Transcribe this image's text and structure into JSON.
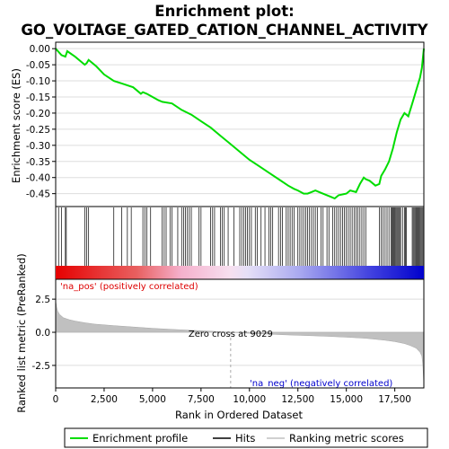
{
  "chart_data": [
    {
      "type": "line",
      "title": "Enrichment plot:",
      "subtitle": "GO_VOLTAGE_GATED_CATION_CHANNEL_ACTIVITY",
      "ylabel": "Enrichment score (ES)",
      "xlim": [
        0,
        19000
      ],
      "ylim": [
        -0.49,
        0.02
      ],
      "yticks": [
        0.0,
        -0.05,
        -0.1,
        -0.15,
        -0.2,
        -0.25,
        -0.3,
        -0.35,
        -0.4,
        -0.45
      ],
      "ytick_labels": [
        "0.00",
        "-0.05",
        "-0.10",
        "-0.15",
        "-0.20",
        "-0.25",
        "-0.30",
        "-0.35",
        "-0.40",
        "-0.45"
      ],
      "grid": true,
      "line_color": "#00dd00",
      "series": [
        {
          "name": "Enrichment profile",
          "x": [
            0,
            300,
            500,
            600,
            1000,
            1500,
            1600,
            1700,
            2100,
            2500,
            3000,
            3500,
            4000,
            4400,
            4500,
            4700,
            5000,
            5300,
            5500,
            6000,
            6500,
            7000,
            7500,
            8000,
            8500,
            9000,
            9500,
            10000,
            10500,
            11000,
            11500,
            12000,
            12300,
            12500,
            12800,
            13000,
            13200,
            13400,
            13600,
            14000,
            14200,
            14400,
            14600,
            15000,
            15200,
            15500,
            15700,
            15900,
            16000,
            16200,
            16500,
            16700,
            16800,
            17000,
            17200,
            17400,
            17600,
            17800,
            18000,
            18200,
            18400,
            18600,
            18800,
            18900,
            18950,
            19000
          ],
          "y": [
            0.0,
            -0.02,
            -0.025,
            -0.008,
            -0.025,
            -0.05,
            -0.045,
            -0.035,
            -0.055,
            -0.08,
            -0.1,
            -0.11,
            -0.12,
            -0.14,
            -0.135,
            -0.14,
            -0.15,
            -0.16,
            -0.165,
            -0.17,
            -0.19,
            -0.205,
            -0.225,
            -0.245,
            -0.27,
            -0.295,
            -0.32,
            -0.345,
            -0.365,
            -0.385,
            -0.405,
            -0.425,
            -0.435,
            -0.44,
            -0.45,
            -0.45,
            -0.445,
            -0.44,
            -0.445,
            -0.455,
            -0.46,
            -0.465,
            -0.455,
            -0.45,
            -0.44,
            -0.445,
            -0.42,
            -0.4,
            -0.405,
            -0.41,
            -0.425,
            -0.42,
            -0.395,
            -0.375,
            -0.35,
            -0.31,
            -0.26,
            -0.22,
            -0.2,
            -0.21,
            -0.17,
            -0.13,
            -0.09,
            -0.06,
            -0.03,
            0.0
          ]
        }
      ]
    },
    {
      "type": "heatmap",
      "series": [
        {
          "name": "Hits",
          "x": [
            150,
            300,
            500,
            550,
            1500,
            1600,
            1700,
            3000,
            3400,
            3700,
            3900,
            4500,
            4600,
            4700,
            4900,
            5500,
            5600,
            5700,
            5900,
            6000,
            6300,
            6500,
            6600,
            6700,
            6800,
            6900,
            7000,
            7400,
            7500,
            8000,
            8100,
            8200,
            8500,
            8600,
            8700,
            8900,
            9200,
            9500,
            9600,
            9700,
            9800,
            9900,
            10000,
            10100,
            10300,
            10400,
            10600,
            10800,
            11000,
            11100,
            11200,
            11500,
            11600,
            11700,
            11900,
            12000,
            12100,
            12200,
            12300,
            12500,
            12600,
            12700,
            12800,
            12900,
            13000,
            13100,
            13200,
            13300,
            13400,
            13500,
            13700,
            13800,
            14000,
            14100,
            14300,
            14400,
            14500,
            14600,
            14700,
            14800,
            14900,
            15000,
            15100,
            15200,
            15300,
            15400,
            15500,
            15600,
            15700,
            15800,
            15900,
            16000,
            16700,
            16800,
            16900,
            17000,
            17100,
            17200,
            17300,
            17350,
            17400,
            17450,
            17500,
            17550,
            17600,
            17650,
            17700,
            17750,
            17800,
            17900,
            18000,
            18050,
            18100,
            18400,
            18450,
            18500,
            18550,
            18600,
            18650,
            18700,
            18750,
            18800,
            18850,
            18900,
            18950
          ]
        }
      ],
      "labels": {
        "pos": "'na_pos' (positively correlated)",
        "neg": "'na_neg' (negatively correlated)"
      }
    },
    {
      "type": "area",
      "ylabel": "Ranked list metric (PreRanked)",
      "xlabel": "Rank in Ordered Dataset",
      "xlim": [
        0,
        19000
      ],
      "ylim": [
        -4.2,
        4.0
      ],
      "yticks": [
        2.5,
        0.0,
        -2.5
      ],
      "ytick_labels": [
        "2.5",
        "0.0",
        "-2.5"
      ],
      "xticks": [
        0,
        2500,
        5000,
        7500,
        10000,
        12500,
        15000,
        17500
      ],
      "xtick_labels": [
        "0",
        "2,500",
        "5,000",
        "7,500",
        "10,000",
        "12,500",
        "15,000",
        "17,500"
      ],
      "zero_cross_label": "Zero cross at 9029",
      "zero_cross": 9029,
      "series": [
        {
          "name": "Ranking metric scores",
          "x": [
            0,
            50,
            100,
            200,
            400,
            700,
            1000,
            1500,
            2000,
            3000,
            4000,
            5000,
            6000,
            7000,
            8000,
            9029,
            10000,
            11000,
            12000,
            13000,
            14000,
            15000,
            16000,
            17000,
            17500,
            18000,
            18300,
            18600,
            18800,
            18900,
            18950,
            19000
          ],
          "y": [
            2.4,
            1.9,
            1.6,
            1.35,
            1.1,
            0.95,
            0.85,
            0.72,
            0.62,
            0.5,
            0.4,
            0.3,
            0.22,
            0.15,
            0.08,
            0.0,
            -0.08,
            -0.14,
            -0.2,
            -0.25,
            -0.3,
            -0.37,
            -0.45,
            -0.6,
            -0.7,
            -0.85,
            -1.0,
            -1.2,
            -1.5,
            -1.8,
            -2.5,
            -4.0
          ]
        }
      ]
    }
  ],
  "legend": {
    "items": [
      {
        "label": "Enrichment profile",
        "color": "#00dd00"
      },
      {
        "label": "Hits",
        "color": "#000000"
      },
      {
        "label": "Ranking metric scores",
        "color": "#c0c0c0"
      }
    ]
  },
  "colors": {
    "pos_label": "#dd0000",
    "neg_label": "#0000cc",
    "metric_fill": "#c0c0c0",
    "zero_line": "#aaaaaa"
  }
}
